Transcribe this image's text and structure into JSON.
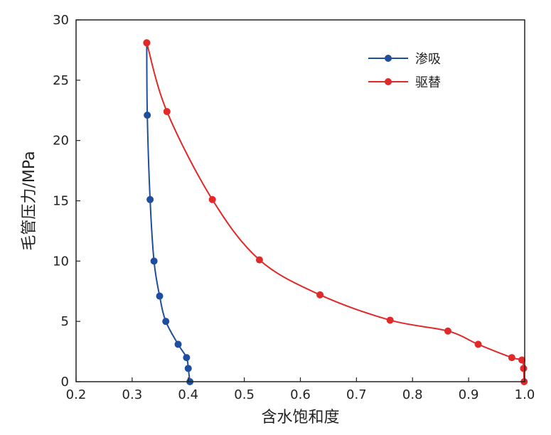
{
  "chart_data": {
    "type": "line",
    "xlabel": "含水饱和度",
    "ylabel": "毛管压力/MPa",
    "xlim": [
      0.2,
      1.0
    ],
    "ylim": [
      0,
      30
    ],
    "x_ticks": [
      "0.2",
      "0.3",
      "0.4",
      "0.5",
      "0.6",
      "0.7",
      "0.8",
      "0.9",
      "1.0"
    ],
    "y_ticks": [
      "0",
      "5",
      "10",
      "15",
      "20",
      "25",
      "30"
    ],
    "grid": false,
    "legend_position": "top-right",
    "series": [
      {
        "name": "渗吸",
        "color": "#1f4e9c",
        "points": [
          [
            0.326,
            28.1
          ],
          [
            0.327,
            22.1
          ],
          [
            0.332,
            15.1
          ],
          [
            0.339,
            10.0
          ],
          [
            0.349,
            7.1
          ],
          [
            0.36,
            5.0
          ],
          [
            0.382,
            3.1
          ],
          [
            0.397,
            2.0
          ],
          [
            0.4,
            1.1
          ],
          [
            0.403,
            0.0
          ]
        ]
      },
      {
        "name": "驱替",
        "color": "#e02a2a",
        "points": [
          [
            0.326,
            28.1
          ],
          [
            0.362,
            22.4
          ],
          [
            0.443,
            15.1
          ],
          [
            0.527,
            10.1
          ],
          [
            0.635,
            7.2
          ],
          [
            0.76,
            5.1
          ],
          [
            0.863,
            4.2
          ],
          [
            0.917,
            3.1
          ],
          [
            0.977,
            2.0
          ],
          [
            0.995,
            1.8
          ],
          [
            0.998,
            1.1
          ],
          [
            0.999,
            0.0
          ]
        ]
      }
    ]
  }
}
